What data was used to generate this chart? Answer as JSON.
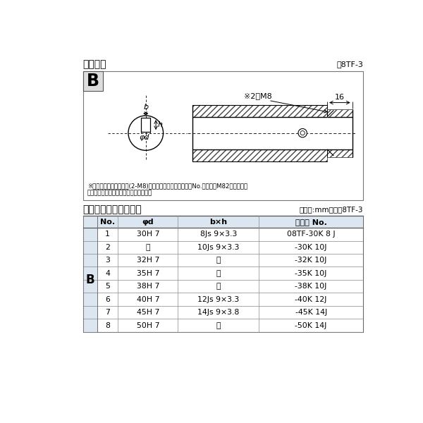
{
  "title_diagram": "軸穴形状",
  "fig_label": "図8TF-3",
  "table_title": "軸穴形状コード一覧表",
  "table_unit": "（単位:mm）　表8TF-3",
  "note_line1": "※セットボルト用タップ(2-M8)が必要な場合は右記コードNo.の末尾にM82を付ける。",
  "note_line2": "（セットボルトは付属されています。）",
  "bg_color": "#ffffff",
  "header_color": "#dce6f1",
  "B_col_color": "#dce6f1",
  "table_header": [
    "No.",
    "φd",
    "b×h",
    "コード No."
  ],
  "table_rows": [
    [
      "1",
      "30H 7",
      "8Js 9×3.3",
      "08TF-30K 8 J"
    ],
    [
      "2",
      "〃",
      "10Js 9×3.3",
      "-30K 10J"
    ],
    [
      "3",
      "32H 7",
      "〃",
      "-32K 10J"
    ],
    [
      "4",
      "35H 7",
      "〃",
      "-35K 10J"
    ],
    [
      "5",
      "38H 7",
      "〃",
      "-38K 10J"
    ],
    [
      "6",
      "40H 7",
      "12Js 9×3.3",
      "-40K 12J"
    ],
    [
      "7",
      "45H 7",
      "14Js 9×3.8",
      "-45K 14J"
    ],
    [
      "8",
      "50H 7",
      "〃",
      "-50K 14J"
    ]
  ],
  "B_label": "B",
  "dim_16": "16",
  "dim_M8": "※2－M8"
}
